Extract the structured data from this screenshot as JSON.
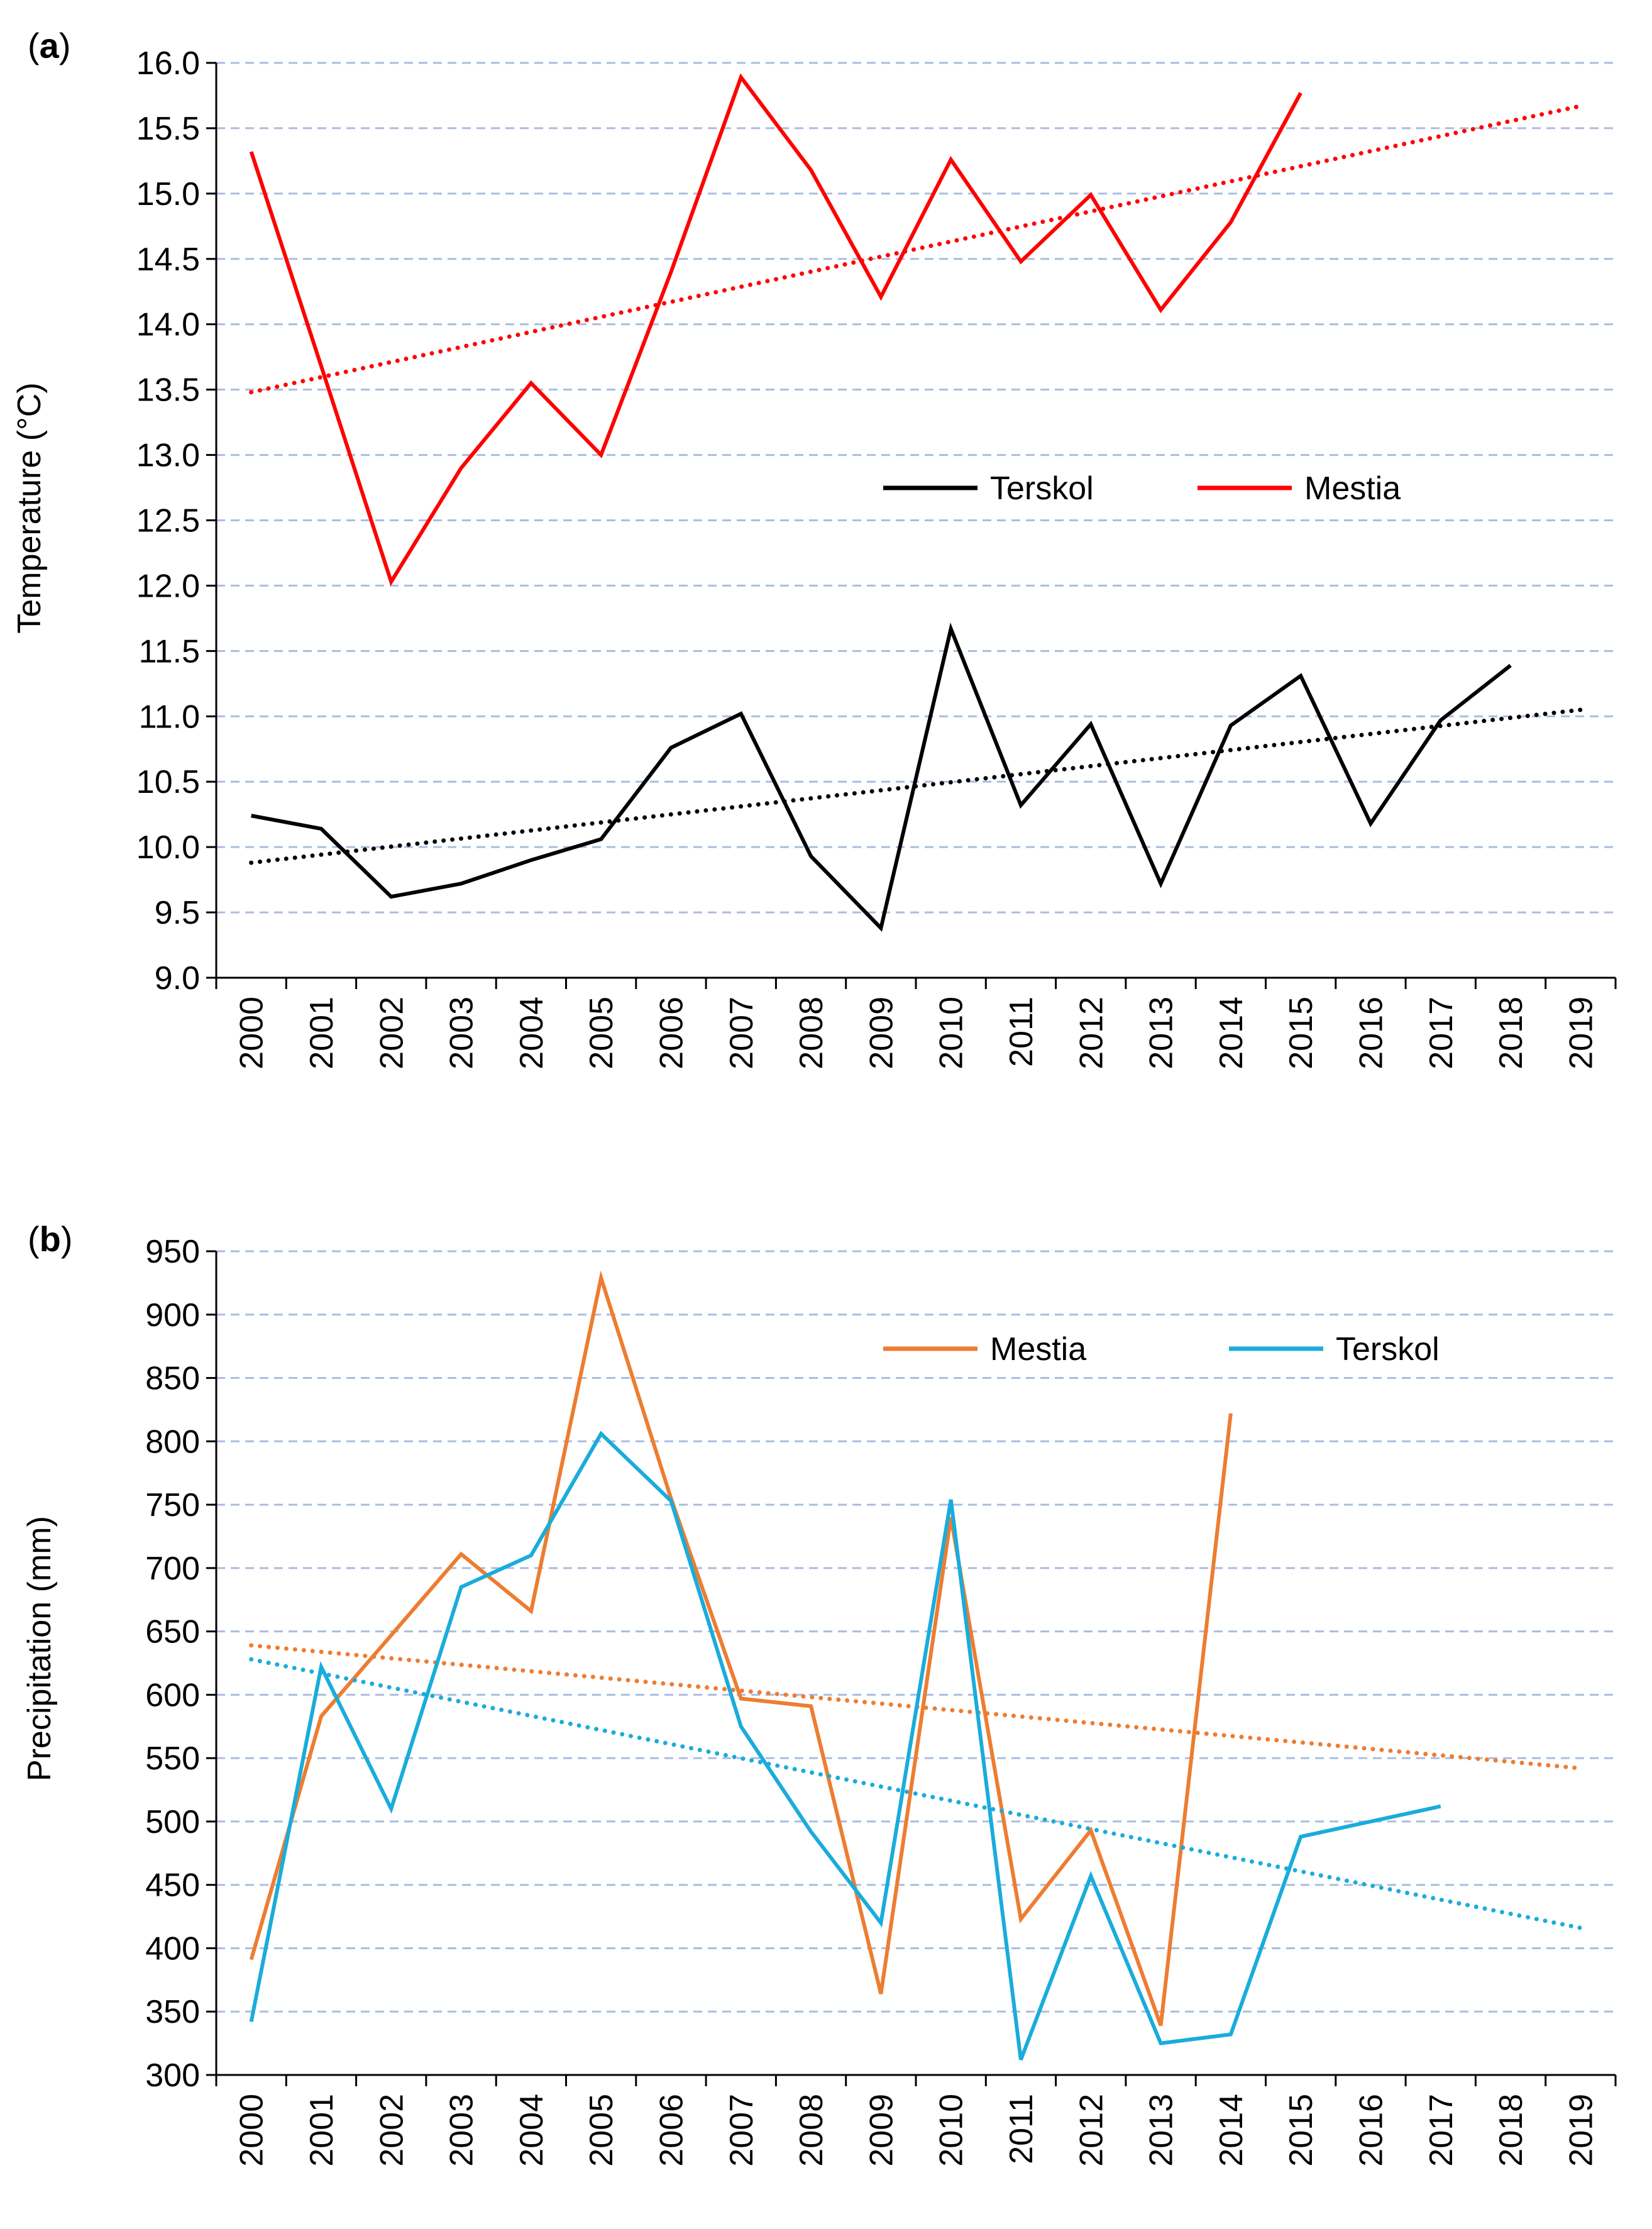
{
  "chart_data": [
    {
      "type": "line",
      "panel_label": "(a)",
      "panel_letter": "a",
      "title": "",
      "xlabel": "",
      "ylabel": "Temperature (°C)",
      "ylim": [
        9.0,
        16.0
      ],
      "y_ticks": [
        "9.0",
        "9.5",
        "10.0",
        "10.5",
        "11.0",
        "11.5",
        "12.0",
        "12.5",
        "13.0",
        "13.5",
        "14.0",
        "14.5",
        "15.0",
        "15.5",
        "16.0"
      ],
      "categories": [
        "2000",
        "2001",
        "2002",
        "2003",
        "2004",
        "2005",
        "2006",
        "2007",
        "2008",
        "2009",
        "2010",
        "2011",
        "2012",
        "2013",
        "2014",
        "2015",
        "2016",
        "2017",
        "2018",
        "2019"
      ],
      "grid": true,
      "legend_position": "center-right",
      "series": [
        {
          "name": "Terskol",
          "color": "#000000",
          "values": [
            10.24,
            10.14,
            9.62,
            9.72,
            9.9,
            10.06,
            10.76,
            11.02,
            9.93,
            9.38,
            11.67,
            10.32,
            10.94,
            9.72,
            10.93,
            11.31,
            10.18,
            10.97,
            11.39,
            null
          ],
          "trend": [
            9.88,
            11.05
          ]
        },
        {
          "name": "Mestia",
          "color": "#ff0000",
          "values": [
            15.32,
            13.68,
            12.03,
            12.9,
            13.55,
            13.0,
            14.4,
            15.89,
            15.18,
            14.21,
            15.26,
            14.48,
            14.99,
            14.11,
            14.78,
            15.77,
            null,
            null,
            null,
            null
          ],
          "trend": [
            13.48,
            15.67
          ]
        }
      ]
    },
    {
      "type": "line",
      "panel_label": "(b)",
      "panel_letter": "b",
      "title": "",
      "xlabel": "",
      "ylabel": "Precipitation (mm)",
      "ylim": [
        300,
        950
      ],
      "y_ticks": [
        "300",
        "350",
        "400",
        "450",
        "500",
        "550",
        "600",
        "650",
        "700",
        "750",
        "800",
        "850",
        "900",
        "950"
      ],
      "categories": [
        "2000",
        "2001",
        "2002",
        "2003",
        "2004",
        "2005",
        "2006",
        "2007",
        "2008",
        "2009",
        "2010",
        "2011",
        "2012",
        "2013",
        "2014",
        "2015",
        "2016",
        "2017",
        "2018",
        "2019"
      ],
      "grid": true,
      "legend_position": "top-right",
      "series": [
        {
          "name": "Mestia",
          "color": "#ed7d31",
          "values": [
            391,
            583,
            647,
            711,
            666,
            929,
            755,
            597,
            591,
            364,
            740,
            423,
            493,
            339,
            822,
            null,
            null,
            null,
            null,
            null
          ],
          "trend": [
            639,
            542
          ]
        },
        {
          "name": "Terskol",
          "color": "#1aacdb",
          "values": [
            342,
            622,
            510,
            685,
            710,
            806,
            753,
            575,
            492,
            420,
            754,
            312,
            457,
            325,
            332,
            488,
            500,
            512,
            null,
            null
          ],
          "trend": [
            628,
            416
          ]
        }
      ]
    }
  ]
}
